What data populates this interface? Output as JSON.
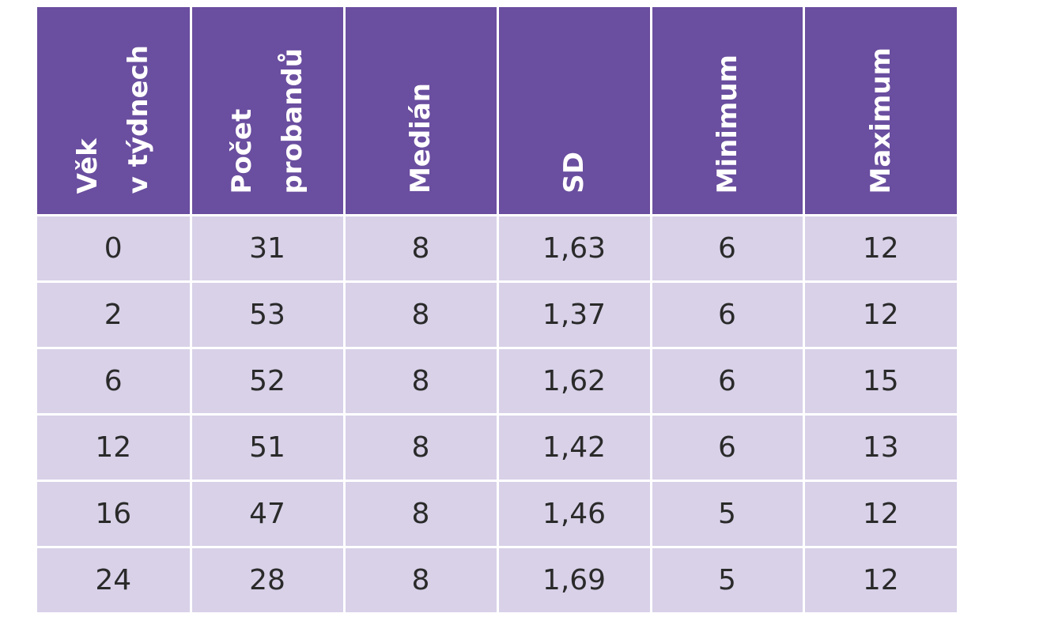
{
  "table": {
    "header_color": "#6a4e9f",
    "row_color": "#d8d1e8",
    "columns": [
      {
        "lines": [
          "Věk",
          "v týdnech"
        ]
      },
      {
        "lines": [
          "Počet",
          "probandů"
        ]
      },
      {
        "lines": [
          "Medián"
        ]
      },
      {
        "lines": [
          "SD"
        ]
      },
      {
        "lines": [
          "Minimum"
        ]
      },
      {
        "lines": [
          "Maximum"
        ]
      }
    ],
    "rows": [
      [
        "0",
        "31",
        "8",
        "1,63",
        "6",
        "12"
      ],
      [
        "2",
        "53",
        "8",
        "1,37",
        "6",
        "12"
      ],
      [
        "6",
        "52",
        "8",
        "1,62",
        "6",
        "15"
      ],
      [
        "12",
        "51",
        "8",
        "1,42",
        "6",
        "13"
      ],
      [
        "16",
        "47",
        "8",
        "1,46",
        "5",
        "12"
      ],
      [
        "24",
        "28",
        "8",
        "1,69",
        "5",
        "12"
      ]
    ]
  }
}
